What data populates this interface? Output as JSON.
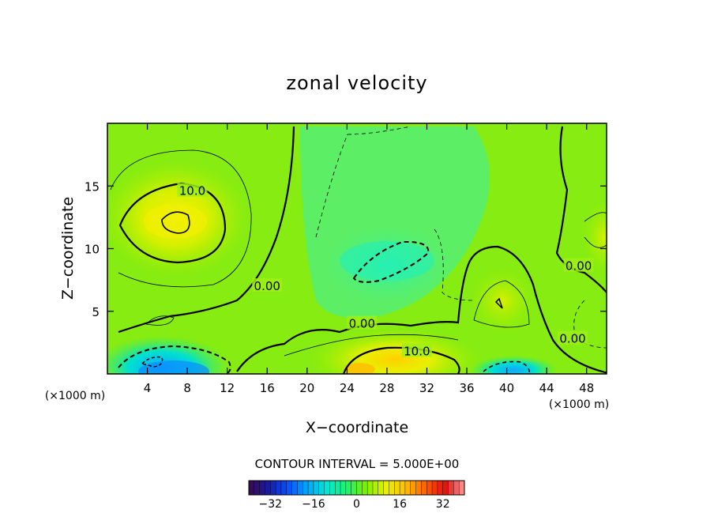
{
  "chart_data": {
    "type": "heatmap",
    "title": "zonal velocity",
    "xlabel": "X−coordinate",
    "ylabel": "Z−coordinate",
    "x_unit_left": "(×1000 m)",
    "x_unit_right": "(×1000 m)",
    "xlim": [
      0,
      50
    ],
    "ylim": [
      0,
      20
    ],
    "x_ticks": [
      4,
      8,
      12,
      16,
      20,
      24,
      28,
      32,
      36,
      40,
      44,
      48
    ],
    "y_ticks": [
      5,
      10,
      15
    ],
    "contour_interval_label": "CONTOUR INTERVAL = 5.000E+00",
    "colorbar": {
      "ticks": [
        -32,
        -16,
        0,
        16,
        32
      ],
      "tick_labels": [
        "−32",
        "−16",
        "0",
        "16",
        "32"
      ],
      "range": [
        -40,
        40
      ],
      "colors": [
        "#3a0a4a",
        "#1a1aa0",
        "#0a50ff",
        "#00a8ff",
        "#00e8d0",
        "#20f070",
        "#80f000",
        "#e8f000",
        "#ffc000",
        "#ff6000",
        "#e01010",
        "#ff9a9a"
      ]
    },
    "contour_labels": [
      {
        "text": "10.0",
        "x": 8.5,
        "z": 14.6
      },
      {
        "text": "0.00",
        "x": 16.0,
        "z": 7.0
      },
      {
        "text": "0.00",
        "x": 25.5,
        "z": 4.0
      },
      {
        "text": "10.0",
        "x": 31.0,
        "z": 1.8
      },
      {
        "text": "0.00",
        "x": 47.2,
        "z": 8.6
      },
      {
        "text": "0.00",
        "x": 46.6,
        "z": 2.8
      }
    ],
    "field_features": [
      {
        "kind": "positive-max",
        "x": 7,
        "z": 12.2,
        "value": 14
      },
      {
        "kind": "positive-max",
        "x": 39.5,
        "z": 5.5,
        "value": 11
      },
      {
        "kind": "positive-max",
        "x": 28,
        "z": 1.0,
        "value": 12
      },
      {
        "kind": "negative-min",
        "x": 6,
        "z": 1.0,
        "value": -14
      },
      {
        "kind": "negative-min",
        "x": 29,
        "z": 9.5,
        "value": -6
      }
    ]
  }
}
